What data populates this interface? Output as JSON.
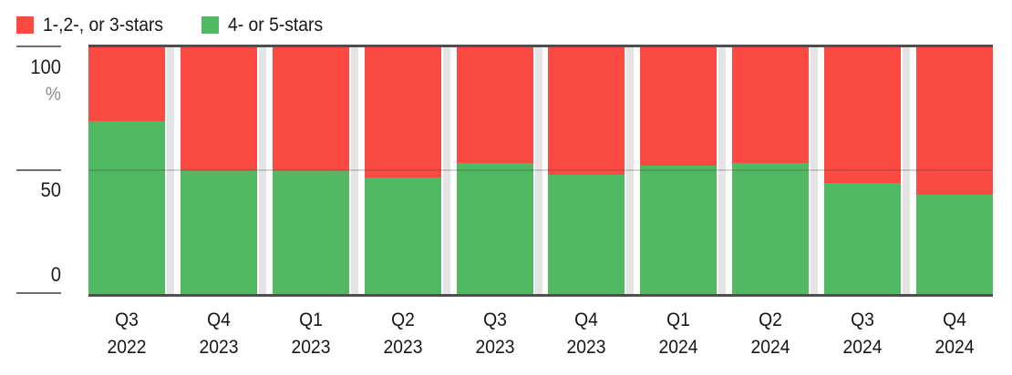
{
  "legend": {
    "items": [
      {
        "label": "1-,2-, or 3-stars",
        "color": "#fa4a42"
      },
      {
        "label": "4- or 5-stars",
        "color": "#50b961"
      }
    ]
  },
  "y_axis": {
    "tick_100": "100",
    "unit": "%",
    "tick_50": "50",
    "tick_0": "0"
  },
  "chart_data": {
    "type": "bar",
    "stacked": true,
    "percent_stacked": true,
    "title": "",
    "unit": "%",
    "categories": [
      "Q3 2022",
      "Q4 2023",
      "Q1 2023",
      "Q2 2023",
      "Q3 2023",
      "Q4 2023",
      "Q1 2024",
      "Q2 2024",
      "Q3 2024",
      "Q4 2024"
    ],
    "categories_lines": [
      [
        "Q3",
        "2022"
      ],
      [
        "Q4",
        "2023"
      ],
      [
        "Q1",
        "2023"
      ],
      [
        "Q2",
        "2023"
      ],
      [
        "Q3",
        "2023"
      ],
      [
        "Q4",
        "2023"
      ],
      [
        "Q1",
        "2024"
      ],
      [
        "Q2",
        "2024"
      ],
      [
        "Q3",
        "2024"
      ],
      [
        "Q4",
        "2024"
      ]
    ],
    "series": [
      {
        "name": "4- or 5-stars",
        "color": "#50b961",
        "values": [
          70,
          50,
          50,
          47,
          53,
          48,
          52,
          53,
          45,
          40
        ]
      },
      {
        "name": "1-,2-, or 3-stars",
        "color": "#fa4a42",
        "values": [
          30,
          50,
          50,
          53,
          47,
          52,
          48,
          47,
          55,
          60
        ]
      }
    ],
    "ylim": [
      0,
      100
    ],
    "yticks": [
      0,
      50,
      100
    ],
    "legend_position": "top-left",
    "grid": "horizontal line at 50 only",
    "colors": {
      "negative_red": "#fa4a42",
      "positive_green": "#50b961",
      "axis_border": "#4e4e4e",
      "tick_mark": "#6e6e6e",
      "gap_strip": "#e4e4e4"
    }
  }
}
